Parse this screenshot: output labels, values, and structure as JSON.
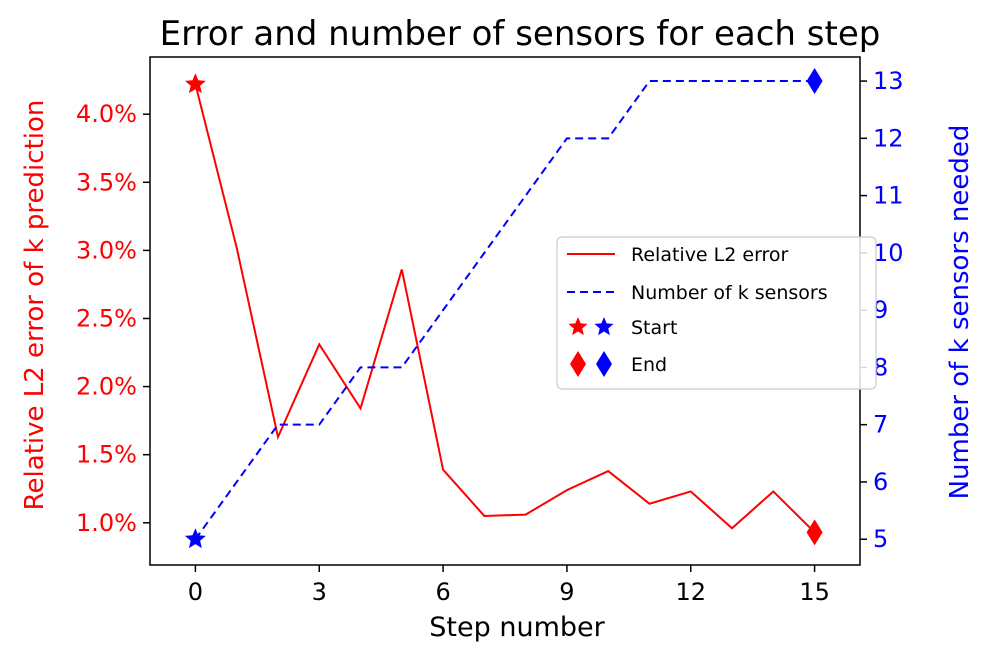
{
  "chart_data": {
    "type": "line",
    "title": "Error and number of sensors for each step",
    "xlabel": "Step number",
    "ylabel_left": "Relative L2 error of k prediction",
    "ylabel_right": "Number of k sensors needed",
    "xlim": [
      -1.1,
      16.1
    ],
    "ylim_left": [
      0.0069,
      0.0442
    ],
    "ylim_right": [
      4.55,
      13.42
    ],
    "x_ticks": [
      0,
      3,
      6,
      9,
      12,
      15
    ],
    "y_ticks_left": [
      {
        "value": 0.01,
        "label": "1.0%"
      },
      {
        "value": 0.015,
        "label": "1.5%"
      },
      {
        "value": 0.02,
        "label": "2.0%"
      },
      {
        "value": 0.025,
        "label": "2.5%"
      },
      {
        "value": 0.03,
        "label": "3.0%"
      },
      {
        "value": 0.035,
        "label": "3.5%"
      },
      {
        "value": 0.04,
        "label": "4.0%"
      }
    ],
    "y_ticks_right": [
      5,
      6,
      7,
      8,
      9,
      10,
      11,
      12,
      13
    ],
    "grid": false,
    "legend_position": "center-right",
    "colors": {
      "error": "#ff0000",
      "sensors": "#0000ff"
    },
    "series": [
      {
        "name": "Relative L2 error",
        "axis": "left",
        "style": "solid",
        "x": [
          0,
          1,
          2,
          3,
          4,
          5,
          6,
          7,
          8,
          9,
          10,
          11,
          12,
          13,
          14,
          15
        ],
        "values": [
          0.0422,
          0.0302,
          0.0163,
          0.0231,
          0.0184,
          0.0286,
          0.0139,
          0.0105,
          0.0106,
          0.0124,
          0.0138,
          0.0114,
          0.0123,
          0.0096,
          0.0123,
          0.0093
        ]
      },
      {
        "name": "Number of k sensors",
        "axis": "right",
        "style": "dashed",
        "x": [
          0,
          1,
          2,
          3,
          4,
          5,
          6,
          7,
          8,
          9,
          10,
          11,
          12,
          13,
          14,
          15
        ],
        "values": [
          5,
          6,
          7,
          7,
          8,
          8,
          9,
          10,
          11,
          12,
          12,
          13,
          13,
          13,
          13,
          13
        ]
      }
    ],
    "markers": [
      {
        "label": "Start",
        "shape": "star",
        "points": [
          {
            "series": 0,
            "index": 0
          },
          {
            "series": 1,
            "index": 0
          }
        ]
      },
      {
        "label": "End",
        "shape": "diamond",
        "points": [
          {
            "series": 0,
            "index": 15
          },
          {
            "series": 1,
            "index": 15
          }
        ]
      }
    ],
    "legend": [
      {
        "label": "Relative L2 error",
        "kind": "line-solid"
      },
      {
        "label": "Number of k sensors",
        "kind": "line-dashed"
      },
      {
        "label": "Start",
        "kind": "star-pair"
      },
      {
        "label": "End",
        "kind": "diamond-pair"
      }
    ]
  }
}
